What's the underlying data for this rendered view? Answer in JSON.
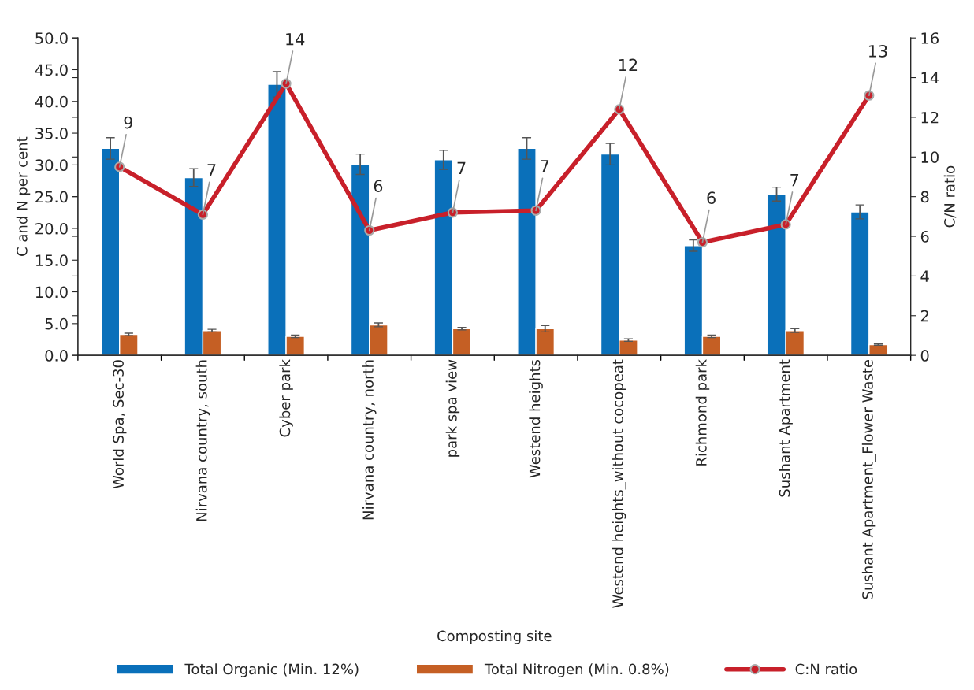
{
  "chart_data": {
    "type": "bar",
    "xlabel": "Composting site",
    "ylabel": "C and N per cent",
    "y2label": "C/N ratio",
    "categories": [
      "World Spa, Sec-30",
      "Nirvana country, south",
      "Cyber park",
      "Nirvana country, north",
      "park spa view",
      "Westend heights",
      "Westend heights_without cocopeat",
      "Richmond park",
      "Sushant Apartment",
      "Sushant Apartment_Flower Waste"
    ],
    "series": [
      {
        "name": "Total Organic (Min. 12%)",
        "color": "#0a70ba",
        "values": [
          32.6,
          28.0,
          42.7,
          30.1,
          30.8,
          32.6,
          31.7,
          17.3,
          25.4,
          22.6
        ],
        "errors": [
          1.7,
          1.4,
          2.0,
          1.6,
          1.5,
          1.7,
          1.7,
          0.9,
          1.1,
          1.1
        ]
      },
      {
        "name": "Total Nitrogen (Min. 0.8%)",
        "color": "#c55f24",
        "values": [
          3.3,
          3.9,
          3.0,
          4.8,
          4.2,
          4.2,
          2.4,
          3.0,
          3.9,
          1.7
        ],
        "errors": [
          0.2,
          0.2,
          0.2,
          0.3,
          0.2,
          0.5,
          0.2,
          0.2,
          0.3,
          0.1
        ]
      },
      {
        "name": "C:N ratio",
        "type": "line",
        "axis": "y2",
        "color": "#c8202a",
        "marker": "circle",
        "values": [
          9.5,
          7.1,
          13.7,
          6.3,
          7.2,
          7.3,
          12.4,
          5.7,
          6.6,
          13.1
        ],
        "value_labels": [
          "9",
          "7",
          "14",
          "6",
          "7",
          "7",
          "12",
          "6",
          "7",
          "13"
        ]
      }
    ],
    "ylim": [
      0,
      50
    ],
    "yticks": [
      {
        "value": 0,
        "label": "0.0"
      },
      {
        "value": 5,
        "label": "5.0"
      },
      {
        "value": 10,
        "label": "10.0"
      },
      {
        "value": 15,
        "label": "15.0"
      },
      {
        "value": 20,
        "label": "20.0"
      },
      {
        "value": 25,
        "label": "25.0"
      },
      {
        "value": 30,
        "label": "30.0"
      },
      {
        "value": 35,
        "label": "35.0"
      },
      {
        "value": 40,
        "label": "40.0"
      },
      {
        "value": 45,
        "label": "45.0"
      },
      {
        "value": 50,
        "label": "50.0"
      }
    ],
    "y2lim": [
      0,
      16
    ],
    "y2ticks": [
      0,
      2,
      4,
      6,
      8,
      10,
      12,
      14,
      16
    ],
    "grid": false,
    "legend": "bottom"
  }
}
